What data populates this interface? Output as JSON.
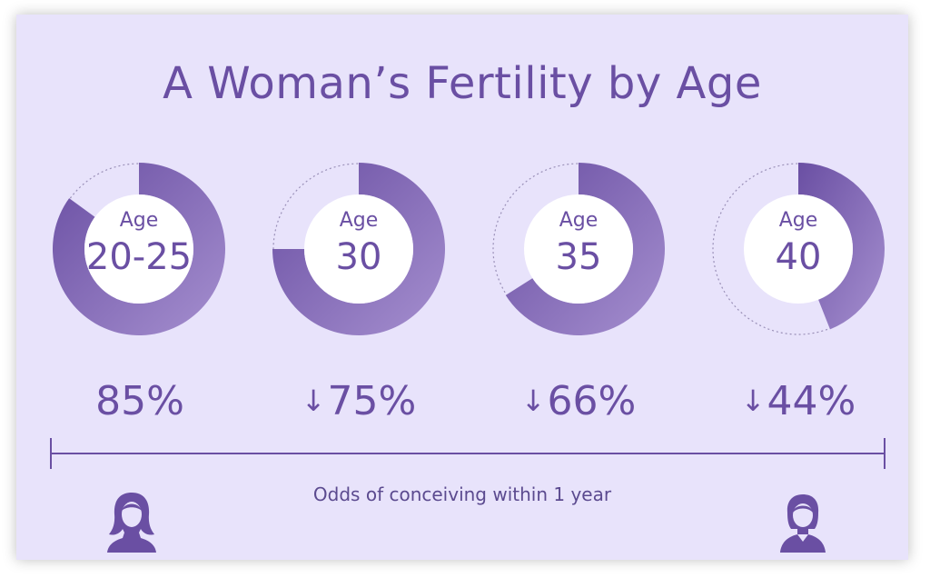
{
  "title": "A Woman’s Fertility by Age",
  "caption": "Odds of conceiving within 1 year",
  "colors": {
    "background": "#e8e3fb",
    "accent": "#6a4fa3",
    "accent_light": "#a58fcf",
    "dotted": "#9a90b8"
  },
  "icons": [
    "young-woman-icon",
    "older-woman-icon"
  ],
  "chart_data": {
    "type": "donut",
    "title": "A Woman’s Fertility by Age",
    "caption": "Odds of conceiving within 1 year",
    "unit": "%",
    "items": [
      {
        "age_label": "Age",
        "age": "20-25",
        "value": 85,
        "value_text": "85%",
        "arrow": ""
      },
      {
        "age_label": "Age",
        "age": "30",
        "value": 75,
        "value_text": "75%",
        "arrow": "↓"
      },
      {
        "age_label": "Age",
        "age": "35",
        "value": 66,
        "value_text": "66%",
        "arrow": "↓"
      },
      {
        "age_label": "Age",
        "age": "40",
        "value": 44,
        "value_text": "44%",
        "arrow": "↓"
      }
    ]
  }
}
